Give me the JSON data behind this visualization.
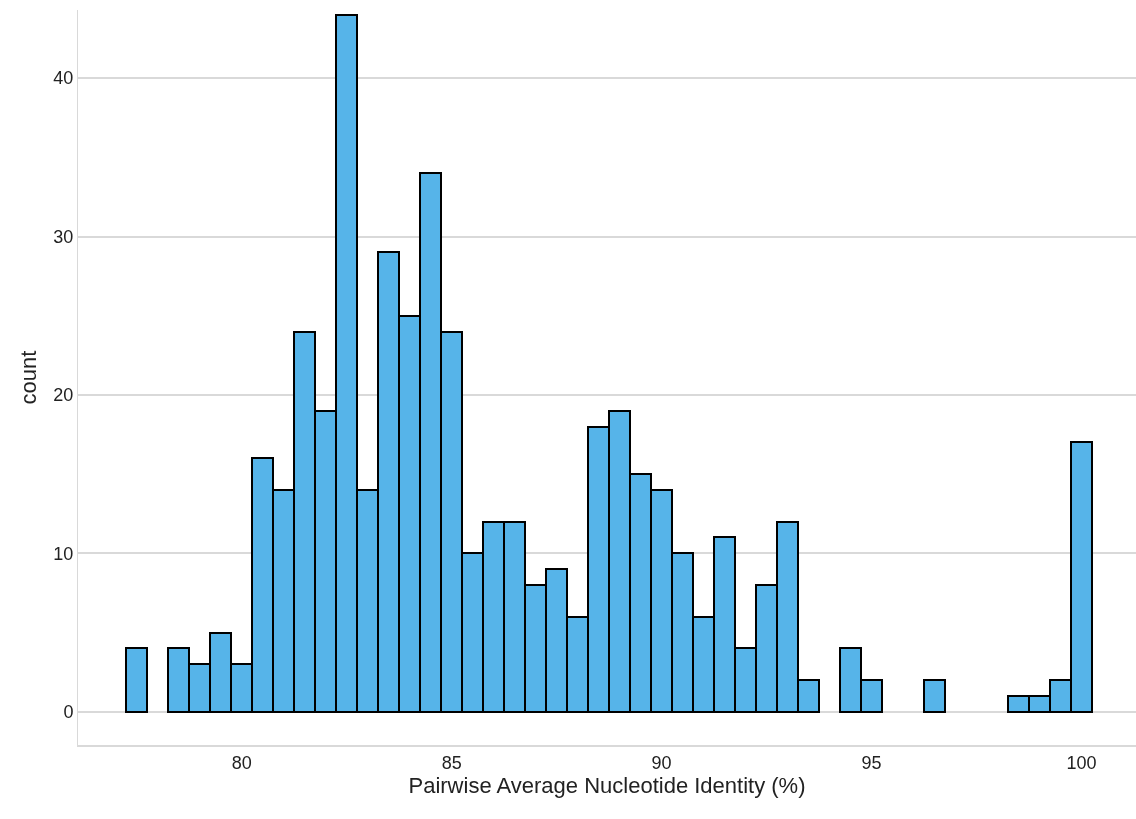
{
  "chart_data": {
    "type": "histogram",
    "xlabel": "Pairwise Average Nucleotide Identity (%)",
    "ylabel": "count",
    "bins": [
      77.25,
      77.75,
      78.25,
      78.75,
      79.25,
      79.75,
      80.25,
      80.75,
      81.25,
      81.75,
      82.25,
      82.75,
      83.25,
      83.75,
      84.25,
      84.75,
      85.25,
      85.75,
      86.25,
      86.75,
      87.25,
      87.75,
      88.25,
      88.75,
      89.25,
      89.75,
      90.25,
      90.75,
      91.25,
      91.75,
      92.25,
      92.75,
      93.25,
      93.75,
      94.25,
      94.75,
      95.25,
      95.75,
      96.25,
      96.75,
      97.25,
      97.75,
      98.25,
      98.75,
      99.25,
      99.75,
      100.25
    ],
    "values": [
      4,
      0,
      4,
      3,
      5,
      3,
      16,
      14,
      24,
      19,
      44,
      14,
      29,
      25,
      34,
      24,
      10,
      12,
      12,
      8,
      9,
      6,
      18,
      19,
      15,
      14,
      10,
      6,
      11,
      4,
      8,
      12,
      2,
      0,
      4,
      2,
      0,
      0,
      2,
      0,
      0,
      0,
      1,
      1,
      2,
      17
    ],
    "color": "#56b4e9",
    "xlim": [
      76.1,
      101.3
    ],
    "xticks": [
      80,
      85,
      90,
      95,
      100
    ],
    "ylim": [
      -2.1,
      44.3
    ],
    "yticks": [
      0,
      10,
      20,
      30,
      40
    ],
    "grid": "y"
  }
}
